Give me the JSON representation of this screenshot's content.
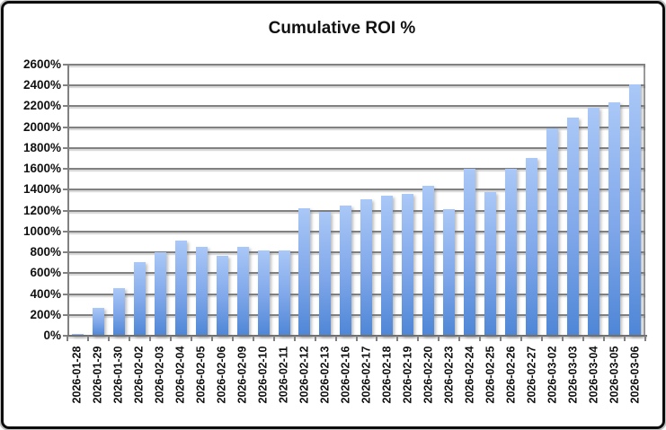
{
  "window": {
    "kind": "spreadsheet-chart-window"
  },
  "chart_data": {
    "type": "bar",
    "title": "Cumulative ROI %",
    "xlabel": "",
    "ylabel": "",
    "categories": [
      "2026-01-28",
      "2026-01-29",
      "2026-01-30",
      "2026-02-02",
      "2026-02-03",
      "2026-02-04",
      "2026-02-05",
      "2026-02-06",
      "2026-02-09",
      "2026-02-10",
      "2026-02-11",
      "2026-02-12",
      "2026-02-13",
      "2026-02-16",
      "2026-02-17",
      "2026-02-18",
      "2026-02-19",
      "2026-02-20",
      "2026-02-23",
      "2026-02-24",
      "2026-02-25",
      "2026-02-26",
      "2026-02-27",
      "2026-03-02",
      "2026-03-03",
      "2026-03-04",
      "2026-03-05",
      "2026-03-06"
    ],
    "values": [
      20,
      265,
      460,
      705,
      805,
      910,
      855,
      765,
      855,
      815,
      815,
      1225,
      1190,
      1245,
      1305,
      1340,
      1360,
      1435,
      1210,
      1605,
      1375,
      1605,
      1705,
      1990,
      2095,
      2190,
      2235,
      2410
    ],
    "ylim": [
      0,
      2600
    ],
    "ytick_step": 200,
    "ytick_labels": [
      "0%",
      "200%",
      "400%",
      "600%",
      "800%",
      "1000%",
      "1200%",
      "1400%",
      "1600%",
      "1800%",
      "2000%",
      "2200%",
      "2400%",
      "2600%"
    ],
    "grid": true,
    "legend": "none",
    "colors": {
      "bar_gradient_top": "#aac8f7",
      "bar_gradient_bottom": "#4e86d6",
      "gridline": "#818181",
      "axis": "#6f6f6f",
      "text": "#111111",
      "frame_border": "#0d0d0d",
      "background": "#ffffff"
    }
  }
}
